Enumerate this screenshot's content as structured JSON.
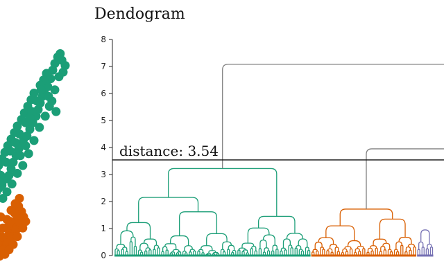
{
  "chart_data": [
    {
      "type": "scatter",
      "title": "",
      "clusters": [
        {
          "color": "#1b9e77",
          "points": [
            [
              0.0,
              0.95
            ],
            [
              0.05,
              1.0
            ],
            [
              0.1,
              1.05
            ],
            [
              0.18,
              1.1
            ],
            [
              0.22,
              1.18
            ],
            [
              0.3,
              1.2
            ],
            [
              0.35,
              1.25
            ],
            [
              0.4,
              1.35
            ],
            [
              0.45,
              1.45
            ],
            [
              0.52,
              1.55
            ],
            [
              0.58,
              1.65
            ],
            [
              0.62,
              1.72
            ],
            [
              0.7,
              1.8
            ],
            [
              0.78,
              1.85
            ],
            [
              0.85,
              1.95
            ],
            [
              0.92,
              2.05
            ],
            [
              1.0,
              2.15
            ],
            [
              1.05,
              2.25
            ],
            [
              1.1,
              2.35
            ],
            [
              1.15,
              2.45
            ],
            [
              1.2,
              2.5
            ],
            [
              1.28,
              2.6
            ],
            [
              1.35,
              2.72
            ],
            [
              1.4,
              2.85
            ],
            [
              1.45,
              2.95
            ],
            [
              1.52,
              3.05
            ],
            [
              1.58,
              3.1
            ],
            [
              1.62,
              3.0
            ],
            [
              1.7,
              2.92
            ],
            [
              1.25,
              2.8
            ],
            [
              1.18,
              2.7
            ],
            [
              1.1,
              2.62
            ],
            [
              0.95,
              2.5
            ],
            [
              0.88,
              2.4
            ],
            [
              0.8,
              2.3
            ],
            [
              0.72,
              2.2
            ],
            [
              0.65,
              2.1
            ],
            [
              0.55,
              2.0
            ],
            [
              0.48,
              1.9
            ],
            [
              0.4,
              1.8
            ],
            [
              0.32,
              1.7
            ],
            [
              0.25,
              1.6
            ],
            [
              0.18,
              1.5
            ],
            [
              0.1,
              1.4
            ],
            [
              0.05,
              1.3
            ],
            [
              0.15,
              1.25
            ],
            [
              0.28,
              1.45
            ],
            [
              0.38,
              1.62
            ],
            [
              0.5,
              1.75
            ],
            [
              0.6,
              1.88
            ],
            [
              0.75,
              2.05
            ],
            [
              0.9,
              2.22
            ],
            [
              1.02,
              2.38
            ],
            [
              1.12,
              2.55
            ],
            [
              1.3,
              2.45
            ],
            [
              1.38,
              2.38
            ],
            [
              1.45,
              2.55
            ],
            [
              1.55,
              2.75
            ],
            [
              1.65,
              2.82
            ],
            [
              0.2,
              0.9
            ],
            [
              0.3,
              1.0
            ],
            [
              0.42,
              1.12
            ],
            [
              0.55,
              1.28
            ],
            [
              0.68,
              1.4
            ],
            [
              0.82,
              1.58
            ],
            [
              0.95,
              1.78
            ],
            [
              1.08,
              1.98
            ],
            [
              1.22,
              2.15
            ],
            [
              1.32,
              2.3
            ],
            [
              0.12,
              1.15
            ],
            [
              0.62,
              1.55
            ],
            [
              0.75,
              1.7
            ],
            [
              0.85,
              2.12
            ],
            [
              1.48,
              2.22
            ]
          ]
        },
        {
          "color": "#d95f02",
          "points": [
            [
              0.0,
              0.0
            ],
            [
              0.05,
              0.05
            ],
            [
              0.1,
              0.1
            ],
            [
              0.15,
              0.15
            ],
            [
              0.2,
              0.2
            ],
            [
              0.25,
              0.25
            ],
            [
              0.3,
              0.3
            ],
            [
              0.35,
              0.35
            ],
            [
              0.4,
              0.42
            ],
            [
              0.45,
              0.48
            ],
            [
              0.5,
              0.55
            ],
            [
              0.55,
              0.6
            ],
            [
              0.6,
              0.65
            ],
            [
              0.65,
              0.7
            ],
            [
              0.7,
              0.62
            ],
            [
              0.62,
              0.52
            ],
            [
              0.52,
              0.42
            ],
            [
              0.42,
              0.32
            ],
            [
              0.32,
              0.22
            ],
            [
              0.22,
              0.12
            ],
            [
              0.12,
              0.02
            ],
            [
              0.08,
              0.22
            ],
            [
              0.18,
              0.32
            ],
            [
              0.28,
              0.45
            ],
            [
              0.38,
              0.55
            ],
            [
              0.48,
              0.68
            ],
            [
              0.58,
              0.78
            ],
            [
              0.35,
              0.12
            ],
            [
              0.45,
              0.2
            ],
            [
              0.55,
              0.32
            ],
            [
              0.68,
              0.45
            ],
            [
              0.75,
              0.55
            ],
            [
              0.2,
              0.45
            ],
            [
              0.3,
              0.58
            ],
            [
              0.4,
              0.72
            ],
            [
              0.15,
              0.62
            ],
            [
              0.05,
              0.4
            ],
            [
              0.25,
              0.05
            ],
            [
              0.6,
              0.9
            ],
            [
              0.5,
              0.82
            ]
          ]
        }
      ]
    },
    {
      "type": "dendrogram",
      "title": "Dendogram",
      "xlabel": "",
      "ylabel": "",
      "ylim": [
        0,
        8
      ],
      "yticks": [
        0,
        1,
        2,
        3,
        4,
        5,
        6,
        7,
        8
      ],
      "cut_line": {
        "value": 3.54,
        "label": "distance: 3.54"
      },
      "link_color_above_cut": "#808080",
      "leaf_count": 151,
      "links": [
        {
          "from": "green",
          "to": "rest",
          "height": 7.08,
          "color": "#808080"
        },
        {
          "from": "orange",
          "to": "purple",
          "height": 3.95,
          "color": "#808080"
        }
      ],
      "clusters": [
        {
          "name": "green",
          "color": "#1b9e77",
          "leaf_range": [
            0,
            93
          ],
          "height": 3.22,
          "subclusters": [
            {
              "height": 2.15,
              "parts": [
                {
                  "height": 1.22,
                  "leaves": 22
                },
                {
                  "height": 1.62,
                  "leaves": 36
                }
              ]
            },
            {
              "height": 1.45,
              "parts": [
                {
                  "height": 1.02,
                  "leaves": 20
                },
                {
                  "height": 0.82,
                  "leaves": 15
                }
              ]
            }
          ]
        },
        {
          "name": "orange",
          "color": "#d95f02",
          "leaf_range": [
            93,
            143
          ],
          "height": 1.72,
          "subclusters": [
            {
              "height": 1.1,
              "leaves": 26
            },
            {
              "height": 1.35,
              "leaves": 24
            }
          ]
        },
        {
          "name": "purple",
          "color": "#7570b3",
          "leaf_range": [
            143,
            151
          ],
          "height": 0.95,
          "subclusters": [
            {
              "height": 0.5,
              "leaves": 4
            },
            {
              "height": 0.42,
              "leaves": 4
            }
          ]
        }
      ]
    }
  ]
}
